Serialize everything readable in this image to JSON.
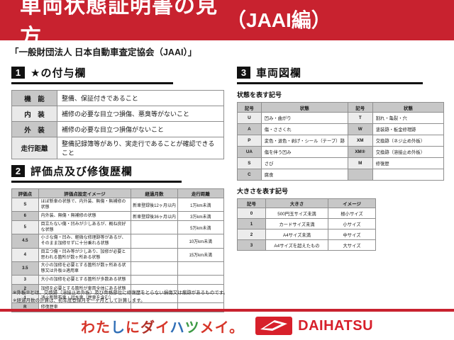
{
  "colors": {
    "banner_red": "#c8222f",
    "brand_red": "#d7202b",
    "table_header_gray": "#c7c7c7",
    "table_alt_gray": "#ececec",
    "section_black": "#111111"
  },
  "banner": {
    "title": "車両状態証明書の見方",
    "edition": "（JAAI編）"
  },
  "source_line": "「一般財団法人 日本自動車査定協会（JAAI）」",
  "sections": {
    "star": {
      "number": "1",
      "title": "★の付与欄",
      "table": {
        "rows": [
          [
            "機　能",
            "整備、保証付きであること"
          ],
          [
            "内　装",
            "補修の必要な目立つ損傷、悪臭等がないこと"
          ],
          [
            "外　装",
            "補修の必要な目立つ損傷がないこと"
          ],
          [
            "走行距離",
            "整備記録簿等があり、実走行であることが確認できること"
          ]
        ]
      }
    },
    "evaluation": {
      "number": "2",
      "title": "評価点及び修復歴欄",
      "table": {
        "headers": [
          "評価点",
          "評価点設定イメージ",
          "経過月数",
          "走行距離"
        ],
        "rows": [
          [
            "S",
            "ほぼ新車の状態で、内外装、無傷・無補修の状態",
            "新車登録後12ヶ月以内",
            "1万km未満"
          ],
          [
            "6",
            "内外装、無傷・無補修の状態",
            "新車登録後36ヶ月以内",
            "3万km未満"
          ],
          [
            "5",
            "目立たない傷・凹みが少しあるが、概ね良好な状態",
            "",
            "5万km未満"
          ],
          [
            "4.5",
            "小さな傷・凹み、軽微な修理跡等があるが、そのまま加修せずに十分乗れる状態",
            "",
            "10万km未満"
          ],
          [
            "4",
            "目立つ傷・凹み等が少しあり、加修が必要と思われる箇所が数ヶ所ある状態",
            "",
            "15万km未満"
          ],
          [
            "3.5",
            "大小の加修を必要とする箇所が数ヶ所ある状態又は外板②適用車",
            "",
            ""
          ],
          [
            "3",
            "大小の加修を必要とする箇所が多数ある状態",
            "",
            ""
          ],
          [
            "2",
            "加修を必要とする箇所が車両全体にある状態",
            "",
            ""
          ],
          [
            "1",
            "消火剤散布車・冠水車（歴車を含む）",
            "",
            ""
          ],
          [
            "R",
            "修復歴車",
            "",
            ""
          ]
        ]
      }
    },
    "diagram": {
      "number": "3",
      "title": "車両図欄",
      "state_symbols": {
        "caption": "状態を表す記号",
        "headers": [
          "記号",
          "状態",
          "記号",
          "状態"
        ],
        "rows": [
          [
            "U",
            "凹み・曲がり",
            "T",
            "割れ・亀裂・穴"
          ],
          [
            "A",
            "傷・ささくれ",
            "W",
            "塗装跡・板金修理跡"
          ],
          [
            "P",
            "変色・退色・剥げ・シール（テープ）跡",
            "XM",
            "交換跡（ネジ止め外板）"
          ],
          [
            "UA",
            "傷を伴う凹み",
            "XM②",
            "交換跡（溶接止め外板）"
          ],
          [
            "S",
            "さび",
            "M",
            "修復歴"
          ],
          [
            "C",
            "腐食",
            "",
            ""
          ]
        ]
      },
      "size_symbols": {
        "caption": "大きさを表す記号",
        "headers": [
          "記号",
          "大きさ",
          "イメージ"
        ],
        "rows": [
          [
            "0",
            "500円玉サイズ未満",
            "極小サイズ"
          ],
          [
            "1",
            "カードサイズ未満",
            "小サイズ"
          ],
          [
            "2",
            "A4サイズ未満",
            "中サイズ"
          ],
          [
            "3",
            "A4サイズを超えたもの",
            "大サイズ"
          ]
        ]
      }
    }
  },
  "notes": [
    "※外板②とは、交換跡（溶接止め外板）及び骨格部位に修復歴をとらない損傷又は痕跡があるものです。",
    "※経過月数の計算は、初年度登録月を一ヶ月として計算します。"
  ],
  "footer": {
    "slogan_chars": [
      {
        "ch": "わ",
        "color": "#d63529"
      },
      {
        "ch": "た",
        "color": "#d63529"
      },
      {
        "ch": "し",
        "color": "#2f6eb6"
      },
      {
        "ch": "に",
        "color": "#d63529"
      },
      {
        "ch": "ダ",
        "color": "#b03028"
      },
      {
        "ch": "イ",
        "color": "#d63529"
      },
      {
        "ch": "ハ",
        "color": "#2f6eb6"
      },
      {
        "ch": "ツ",
        "color": "#3d9a44"
      },
      {
        "ch": "メ",
        "color": "#d63529"
      },
      {
        "ch": "イ",
        "color": "#d63529"
      },
      {
        "ch": "。",
        "color": "#d63529"
      }
    ],
    "brand": "DAIHATSU"
  }
}
